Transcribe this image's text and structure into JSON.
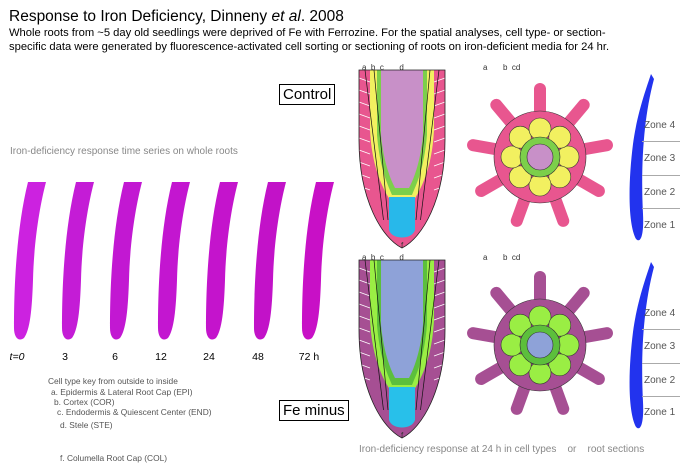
{
  "header": {
    "title_prefix": "Response to Iron Deficiency, Dinneny ",
    "title_italic": "et al",
    "title_suffix": ". 2008",
    "subtitle_line1": "Whole roots from ~5 day old seedlings were deprived of Fe with Ferrozine. For the spatial analyses, cell type- or section-",
    "subtitle_line2": "specific data were generated by fluorescence-activated cell sorting or sectioning of roots on iron-deficient media for 24 hr."
  },
  "time_series": {
    "label": "Iron-deficiency response time series on whole roots",
    "timepoints": [
      "t=0",
      "3",
      "6",
      "12",
      "24",
      "48",
      "72 h"
    ],
    "colors": [
      "#cc22e0",
      "#c41cd6",
      "#c218d2",
      "#c316d0",
      "#c414cc",
      "#c212c8",
      "#c810c6"
    ]
  },
  "cell_key": {
    "heading": "Cell type key from outside to inside",
    "items": [
      "a. Epidermis & Lateral Root Cap (EPI)",
      "b. Cortex (COR)",
      "c. Endodermis & Quiescent Center (END)",
      "d. Stele (STE)",
      "f. Columella Root Cap (COL)"
    ]
  },
  "conditions": {
    "control": "Control",
    "fe_minus": "Fe minus"
  },
  "letters": {
    "a": "a",
    "b": "b",
    "c": "c",
    "d": "d",
    "f": "f"
  },
  "zones": [
    "Zone 4",
    "Zone 3",
    "Zone 2",
    "Zone 1"
  ],
  "bottom_caption": {
    "part1": "Iron-deficiency response at 24 h in cell types",
    "or": "or",
    "part2": "root sections"
  },
  "colors": {
    "control": {
      "epi": "#e8568f",
      "cor": "#f2f060",
      "end": "#7ccf4a",
      "ste": "#c890c8",
      "col": "#28b8ea",
      "section_bg": "#e8568f"
    },
    "fe_minus": {
      "epi": "#a64f93",
      "cor": "#9aee44",
      "end": "#5cbf3c",
      "ste": "#8ea2d8",
      "col": "#28c0ea",
      "section_bg": "#a64f93"
    },
    "zone_root": "#2233ee"
  }
}
